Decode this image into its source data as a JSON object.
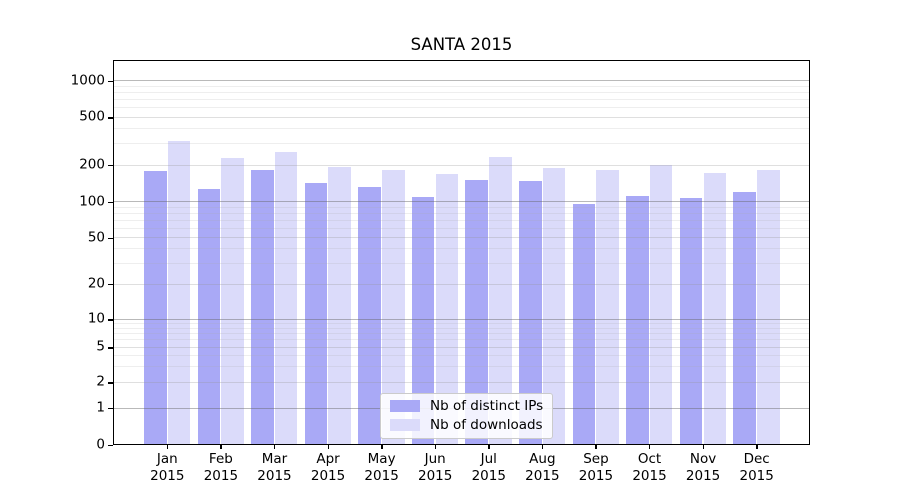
{
  "figure": {
    "title": "SANTA 2015"
  },
  "chart_data": {
    "type": "bar",
    "title": "SANTA 2015",
    "xlabel": "",
    "ylabel": "",
    "yscale": "symlog",
    "ylim": [
      0,
      1450
    ],
    "grid": true,
    "background": "#ffffff",
    "y_ticks": [
      0,
      1,
      2,
      5,
      10,
      20,
      50,
      100,
      200,
      500,
      1000
    ],
    "y_decade_gridlines": [
      1,
      10,
      100,
      1000
    ],
    "y_minor_gridlines": [
      3,
      4,
      6,
      7,
      8,
      9,
      30,
      40,
      60,
      70,
      80,
      90,
      300,
      400,
      600,
      700,
      800,
      900
    ],
    "categories": [
      {
        "month": "Jan",
        "year": "2015"
      },
      {
        "month": "Feb",
        "year": "2015"
      },
      {
        "month": "Mar",
        "year": "2015"
      },
      {
        "month": "Apr",
        "year": "2015"
      },
      {
        "month": "May",
        "year": "2015"
      },
      {
        "month": "Jun",
        "year": "2015"
      },
      {
        "month": "Jul",
        "year": "2015"
      },
      {
        "month": "Aug",
        "year": "2015"
      },
      {
        "month": "Sep",
        "year": "2015"
      },
      {
        "month": "Oct",
        "year": "2015"
      },
      {
        "month": "Nov",
        "year": "2015"
      },
      {
        "month": "Dec",
        "year": "2015"
      }
    ],
    "series": [
      {
        "name": "Nb of distinct IPs",
        "color": "#a9a9f6",
        "values": [
          175,
          125,
          180,
          140,
          130,
          108,
          148,
          144,
          93,
          110,
          105,
          118
        ]
      },
      {
        "name": "Nb of downloads",
        "color": "#dbdbfa",
        "values": [
          310,
          225,
          250,
          190,
          180,
          166,
          228,
          185,
          178,
          195,
          168,
          180
        ]
      }
    ],
    "legend_position": "lower-center"
  }
}
